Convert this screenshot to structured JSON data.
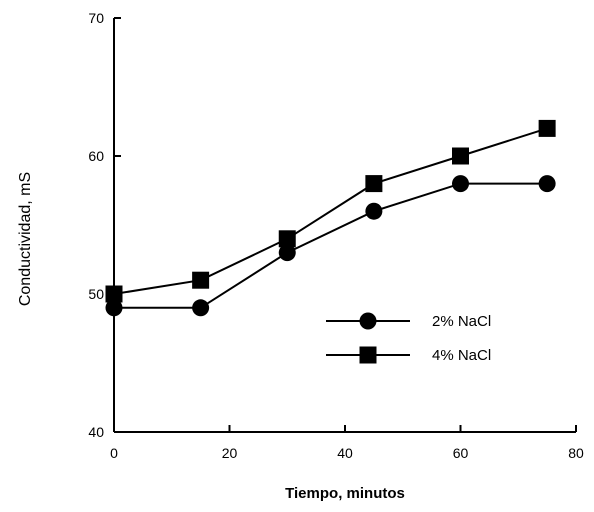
{
  "chart_data": {
    "type": "line",
    "title": "",
    "xlabel": "Tiempo, minutos",
    "ylabel": "Conductividad, mS",
    "xlim": [
      0,
      80
    ],
    "ylim": [
      40,
      70
    ],
    "xticks": [
      0,
      20,
      40,
      60,
      80
    ],
    "yticks": [
      40,
      50,
      60,
      70
    ],
    "grid": false,
    "legend_position": "center-right",
    "series": [
      {
        "name": "2% NaCl",
        "marker": "circle",
        "color": "#000000",
        "x": [
          0,
          15,
          30,
          45,
          60,
          75
        ],
        "y": [
          49,
          49,
          53,
          56,
          58,
          58
        ]
      },
      {
        "name": "4% NaCl",
        "marker": "square",
        "color": "#000000",
        "x": [
          0,
          15,
          30,
          45,
          60,
          75
        ],
        "y": [
          50,
          51,
          54,
          58,
          60,
          62
        ]
      }
    ]
  }
}
